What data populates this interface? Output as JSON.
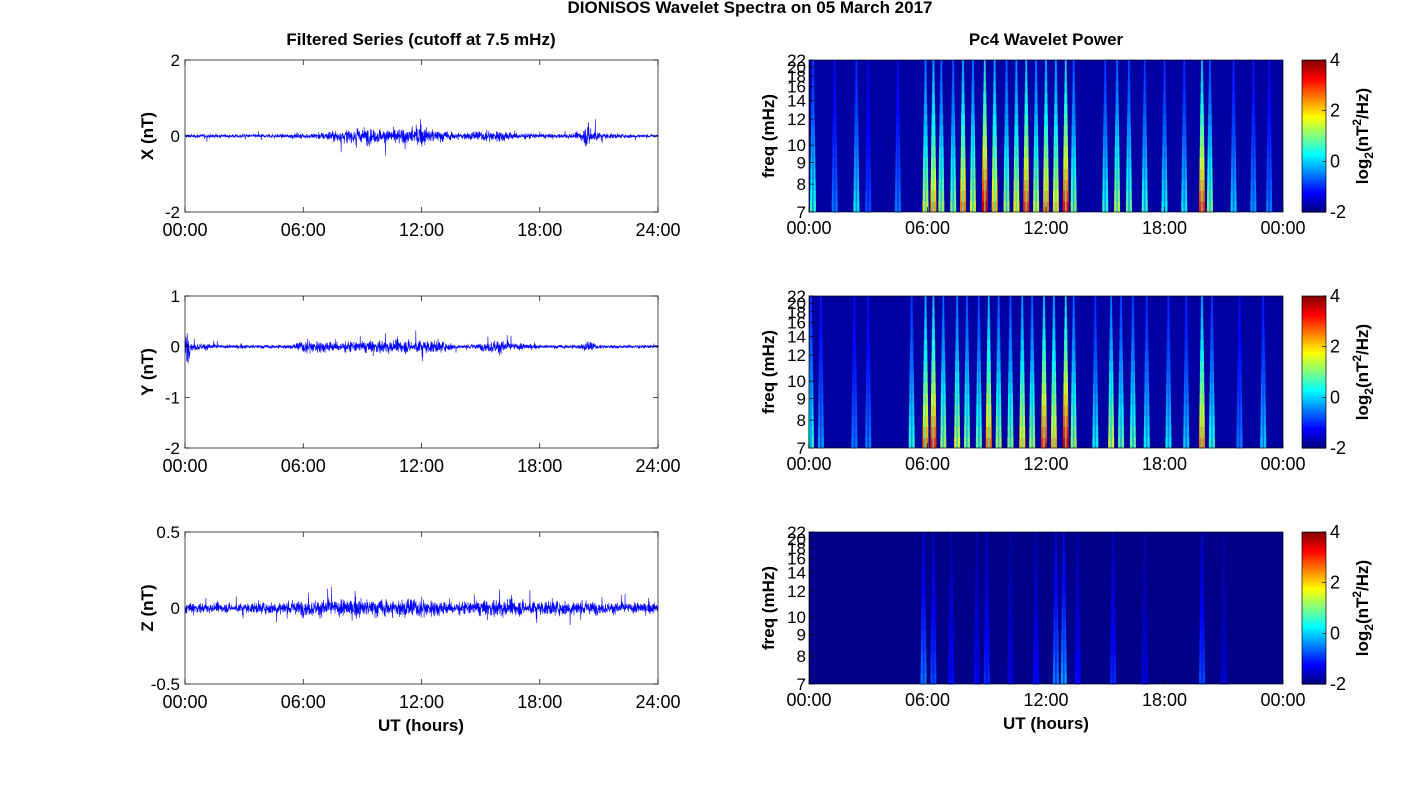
{
  "figure": {
    "title": "DIONISOS Wavelet Spectra on 05 March 2017"
  },
  "left_title": "Filtered Series (cutoff at 7.5 mHz)",
  "right_title": "Pc4 Wavelet Power",
  "x_ticklabels_left": [
    "00:00",
    "06:00",
    "12:00",
    "18:00",
    "24:00"
  ],
  "x_ticklabels_right": [
    "00:00",
    "06:00",
    "12:00",
    "18:00",
    "00:00"
  ],
  "xlabel": "UT (hours)",
  "colors": {
    "trace": "#0000ff",
    "axes": "#000000"
  },
  "chart_data": [
    {
      "type": "line",
      "component": "X",
      "ylabel": "X (nT)",
      "xlim": [
        0,
        24
      ],
      "ylim": [
        -2,
        2
      ],
      "yticks": [
        "2",
        "0",
        "-2"
      ],
      "baseline": 0,
      "noise_amplitude_envelope": {
        "x_hours": [
          0,
          3,
          6,
          8,
          9,
          10,
          11,
          12,
          13,
          14,
          15,
          16,
          17,
          18,
          19,
          20,
          20.5,
          21,
          22,
          24
        ],
        "amplitude_nT": [
          0.12,
          0.1,
          0.15,
          0.35,
          0.55,
          0.4,
          0.45,
          0.55,
          0.35,
          0.2,
          0.3,
          0.35,
          0.2,
          0.15,
          0.12,
          0.2,
          0.8,
          0.2,
          0.12,
          0.1
        ]
      }
    },
    {
      "type": "line",
      "component": "Y",
      "ylabel": "Y (nT)",
      "xlim": [
        0,
        24
      ],
      "ylim": [
        -2,
        1
      ],
      "yticks": [
        "1",
        "0",
        "-1",
        "-2"
      ],
      "baseline": 0,
      "noise_amplitude_envelope": {
        "x_hours": [
          0,
          0.1,
          0.3,
          2,
          5.5,
          6,
          8,
          10,
          12,
          13,
          14,
          15,
          15.8,
          16.5,
          18,
          20,
          20.5,
          21,
          24
        ],
        "amplitude_nT": [
          0.5,
          0.8,
          0.2,
          0.08,
          0.1,
          0.3,
          0.25,
          0.3,
          0.3,
          0.25,
          0.08,
          0.15,
          0.35,
          0.2,
          0.08,
          0.1,
          0.25,
          0.08,
          0.08
        ]
      }
    },
    {
      "type": "line",
      "component": "Z",
      "ylabel": "Z (nT)",
      "xlim": [
        0,
        24
      ],
      "ylim": [
        -0.5,
        0.5
      ],
      "yticks": [
        "0.5",
        "0",
        "-0.5"
      ],
      "baseline": 0,
      "noise_amplitude_envelope": {
        "x_hours": [
          0,
          3,
          6,
          9,
          12,
          13,
          14,
          16,
          18,
          20,
          21,
          24
        ],
        "amplitude_nT": [
          0.08,
          0.07,
          0.12,
          0.14,
          0.14,
          0.12,
          0.1,
          0.14,
          0.1,
          0.12,
          0.09,
          0.08
        ]
      }
    },
    {
      "type": "heatmap",
      "component": "X",
      "ylabel": "freq (mHz)",
      "xlim": [
        0,
        24
      ],
      "ylim": [
        7,
        22
      ],
      "yticks": [
        "22",
        "20",
        "18",
        "16",
        "14",
        "12",
        "10",
        "9",
        "8",
        "7"
      ],
      "colorbar": {
        "label": "log2(nT^2/Hz)",
        "range": [
          -2,
          4
        ],
        "ticks": [
          "4",
          "2",
          "0",
          "-2"
        ]
      },
      "background_log2_power": -1.8,
      "bursts_time_hours_log2_power": [
        [
          0.2,
          0.5
        ],
        [
          1.3,
          -0.5
        ],
        [
          2.4,
          0.2
        ],
        [
          3.0,
          -0.8
        ],
        [
          4.5,
          -0.5
        ],
        [
          5.9,
          1.5
        ],
        [
          6.3,
          2.3
        ],
        [
          6.7,
          1.2
        ],
        [
          7.3,
          1.0
        ],
        [
          7.8,
          2.5
        ],
        [
          8.3,
          1.5
        ],
        [
          8.9,
          3.5
        ],
        [
          9.4,
          2.2
        ],
        [
          10.0,
          1.2
        ],
        [
          10.5,
          1.8
        ],
        [
          11.0,
          3.0
        ],
        [
          11.5,
          1.5
        ],
        [
          12.0,
          2.5
        ],
        [
          12.5,
          2.0
        ],
        [
          13.0,
          3.2
        ],
        [
          13.4,
          1.0
        ],
        [
          15.0,
          0.5
        ],
        [
          15.6,
          1.3
        ],
        [
          16.2,
          0.8
        ],
        [
          17.0,
          0.5
        ],
        [
          18.0,
          0.3
        ],
        [
          19.0,
          0.2
        ],
        [
          19.9,
          3.0
        ],
        [
          20.3,
          1.0
        ],
        [
          21.5,
          0.0
        ],
        [
          22.5,
          -0.3
        ],
        [
          23.3,
          -0.5
        ]
      ]
    },
    {
      "type": "heatmap",
      "component": "Y",
      "ylabel": "freq (mHz)",
      "xlim": [
        0,
        24
      ],
      "ylim": [
        7,
        22
      ],
      "yticks": [
        "22",
        "20",
        "18",
        "16",
        "14",
        "12",
        "10",
        "9",
        "8",
        "7"
      ],
      "colorbar": {
        "label": "log2(nT^2/Hz)",
        "range": [
          -2,
          4
        ],
        "ticks": [
          "4",
          "2",
          "0",
          "-2"
        ]
      },
      "background_log2_power": -1.8,
      "bursts_time_hours_log2_power": [
        [
          0.1,
          0.5
        ],
        [
          0.6,
          -0.3
        ],
        [
          2.3,
          -0.5
        ],
        [
          3.0,
          -0.5
        ],
        [
          5.2,
          0.5
        ],
        [
          5.9,
          2.5
        ],
        [
          6.3,
          3.0
        ],
        [
          6.8,
          1.2
        ],
        [
          7.5,
          1.5
        ],
        [
          8.0,
          1.0
        ],
        [
          8.6,
          0.8
        ],
        [
          9.1,
          2.5
        ],
        [
          9.6,
          1.2
        ],
        [
          10.2,
          1.0
        ],
        [
          10.8,
          2.0
        ],
        [
          11.3,
          1.2
        ],
        [
          11.9,
          3.0
        ],
        [
          12.4,
          2.2
        ],
        [
          13.0,
          3.5
        ],
        [
          13.4,
          1.2
        ],
        [
          14.5,
          0.3
        ],
        [
          15.3,
          1.5
        ],
        [
          15.8,
          0.8
        ],
        [
          16.4,
          0.8
        ],
        [
          17.1,
          0.3
        ],
        [
          18.2,
          0.2
        ],
        [
          19.1,
          0.0
        ],
        [
          19.9,
          2.5
        ],
        [
          20.4,
          0.5
        ],
        [
          21.8,
          -0.5
        ],
        [
          23.0,
          0.0
        ]
      ]
    },
    {
      "type": "heatmap",
      "component": "Z",
      "ylabel": "freq (mHz)",
      "xlim": [
        0,
        24
      ],
      "ylim": [
        7,
        22
      ],
      "yticks": [
        "22",
        "20",
        "18",
        "16",
        "14",
        "12",
        "10",
        "9",
        "8",
        "7"
      ],
      "colorbar": {
        "label": "log2(nT^2/Hz)",
        "range": [
          -2,
          4
        ],
        "ticks": [
          "4",
          "2",
          "0",
          "-2"
        ]
      },
      "background_log2_power": -1.95,
      "bursts_time_hours_log2_power": [
        [
          5.8,
          -0.5
        ],
        [
          6.3,
          -0.8
        ],
        [
          7.2,
          -1.2
        ],
        [
          8.5,
          -1.3
        ],
        [
          9.0,
          -1.0
        ],
        [
          10.2,
          -1.4
        ],
        [
          11.5,
          -1.2
        ],
        [
          12.5,
          -0.5
        ],
        [
          12.9,
          -0.3
        ],
        [
          13.6,
          -1.2
        ],
        [
          15.4,
          -1.0
        ],
        [
          17.0,
          -1.4
        ],
        [
          19.9,
          -0.8
        ],
        [
          21.0,
          -1.5
        ]
      ]
    }
  ]
}
